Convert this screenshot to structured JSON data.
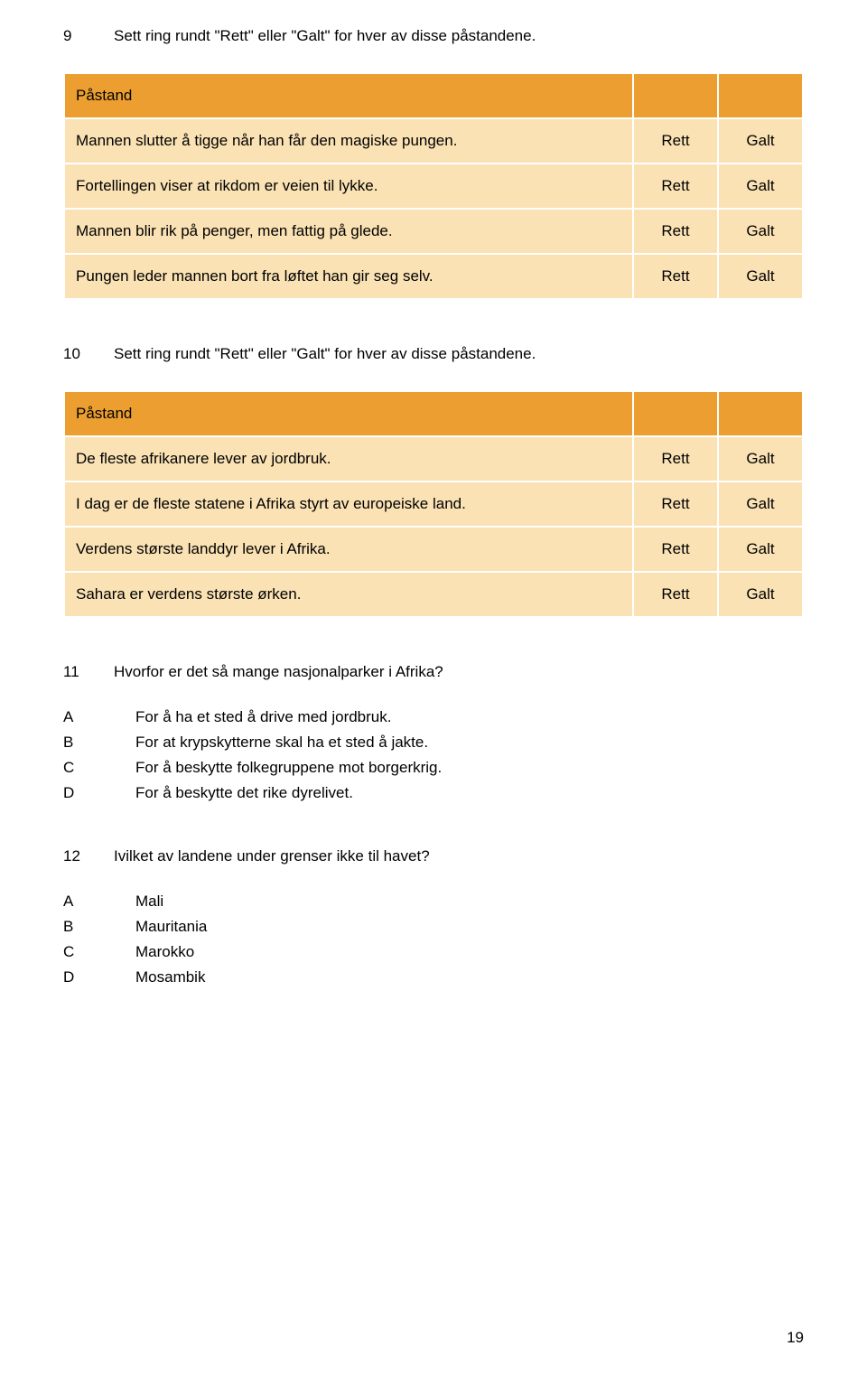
{
  "colors": {
    "header_bg": "#ec9f30",
    "cell_bg": "#fae2b4",
    "text": "#000000",
    "page_bg": "#ffffff"
  },
  "typography": {
    "body_fontsize": 17,
    "font_family": "Arial"
  },
  "q9": {
    "number": "9",
    "prompt": "Sett ring rundt \"Rett\" eller \"Galt\" for hver av disse  påstandene.",
    "header": "Påstand",
    "opt1": "Rett",
    "opt2": "Galt",
    "rows": [
      {
        "text": "Mannen slutter å tigge når han får den magiske pungen."
      },
      {
        "text": "Fortellingen viser at rikdom er veien til lykke."
      },
      {
        "text": "Mannen blir rik på penger, men fattig på glede."
      },
      {
        "text": "Pungen leder mannen bort fra løftet han gir seg selv."
      }
    ]
  },
  "q10": {
    "number": "10",
    "prompt": "Sett ring rundt \"Rett\" eller \"Galt\" for hver av disse påstandene.",
    "header": "Påstand",
    "opt1": "Rett",
    "opt2": "Galt",
    "rows": [
      {
        "text": "De fleste afrikanere lever av jordbruk."
      },
      {
        "text": "I dag er de fleste statene i Afrika styrt av europeiske land."
      },
      {
        "text": "Verdens største landdyr lever i Afrika."
      },
      {
        "text": "Sahara er verdens største ørken."
      }
    ]
  },
  "q11": {
    "number": "11",
    "prompt": "Hvorfor er det så mange nasjonalparker i Afrika?",
    "choices": [
      {
        "letter": "A",
        "text": "For å ha et sted å drive med jordbruk."
      },
      {
        "letter": "B",
        "text": "For at krypskytterne skal ha et sted å jakte."
      },
      {
        "letter": "C",
        "text": "For å beskytte folkegruppene mot borgerkrig."
      },
      {
        "letter": "D",
        "text": "For å beskytte det rike dyrelivet."
      }
    ]
  },
  "q12": {
    "number": "12",
    "prompt": "Ivilket av landene under grenser ikke til havet?",
    "choices": [
      {
        "letter": "A",
        "text": "Mali"
      },
      {
        "letter": "B",
        "text": "Mauritania"
      },
      {
        "letter": "C",
        "text": "Marokko"
      },
      {
        "letter": "D",
        "text": "Mosambik"
      }
    ]
  },
  "page_number": "19"
}
